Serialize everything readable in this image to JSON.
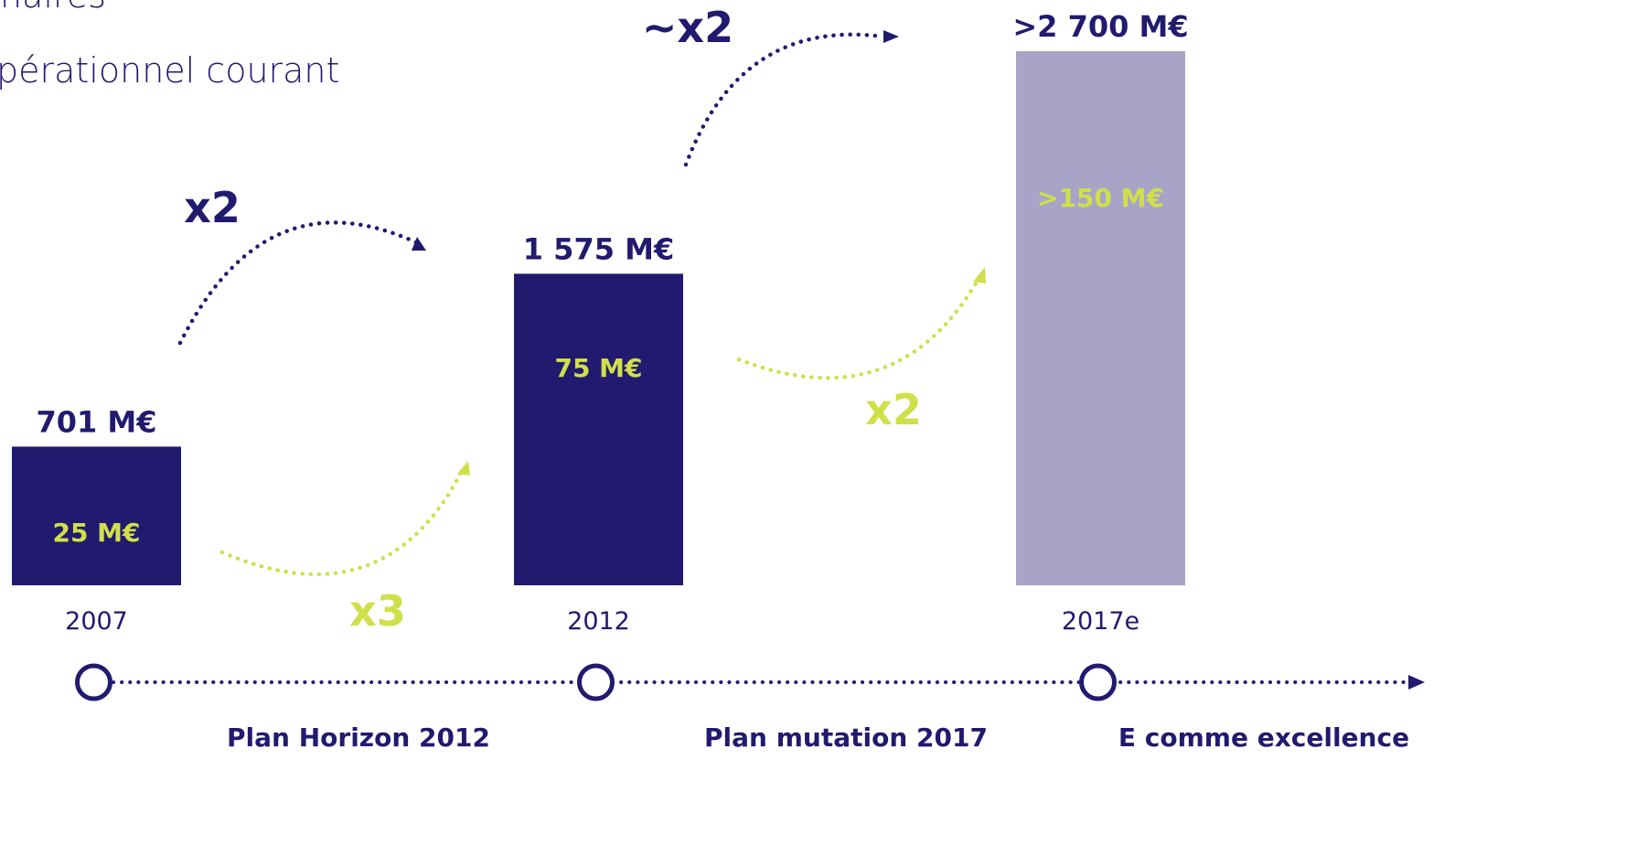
{
  "legend_texts": [
    "naires",
    "pérationnel courant"
  ],
  "chart_data": {
    "type": "bar",
    "categories": [
      "2007",
      "2012",
      "2017e"
    ],
    "series": [
      {
        "colors": [
          "#221a6e",
          "#221a6e",
          "#a8a4c8"
        ],
        "values": [
          701,
          1575,
          2700
        ],
        "value_labels": [
          "701 M€",
          "1 575 M€",
          ">2 700 M€"
        ]
      },
      {
        "color": "#cfe04a",
        "values": [
          25,
          75,
          150
        ],
        "value_labels": [
          "25 M€",
          "75 M€",
          ">150 M€"
        ]
      }
    ],
    "annotations": [
      "x2",
      "x3",
      "~x2",
      "x2"
    ],
    "timeline": [
      "Plan Horizon 2012",
      "Plan mutation 2017",
      "E comme excellence"
    ]
  }
}
